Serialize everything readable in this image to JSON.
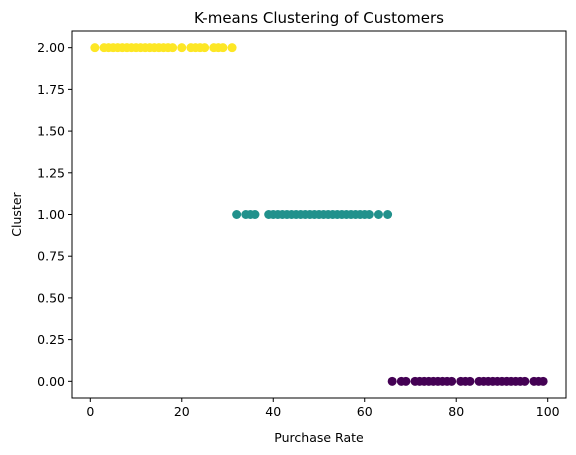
{
  "chart_data": {
    "type": "scatter",
    "title": "K-means Clustering of Customers",
    "xlabel": "Purchase Rate",
    "ylabel": "Cluster",
    "xlim": [
      -4,
      104
    ],
    "ylim": [
      -0.1,
      2.1
    ],
    "xticks": [
      0,
      20,
      40,
      60,
      80,
      100
    ],
    "xtick_labels": [
      "0",
      "20",
      "40",
      "60",
      "80",
      "100"
    ],
    "yticks": [
      0,
      0.25,
      0.5,
      0.75,
      1.0,
      1.25,
      1.5,
      1.75,
      2.0
    ],
    "ytick_labels": [
      "0.00",
      "0.25",
      "0.50",
      "0.75",
      "1.00",
      "1.25",
      "1.50",
      "1.75",
      "2.00"
    ],
    "grid": false,
    "series": [
      {
        "cluster": 2,
        "color": "#fde725",
        "x": [
          1,
          3,
          4,
          5,
          6,
          7,
          8,
          9,
          10,
          11,
          12,
          13,
          14,
          15,
          16,
          17,
          18,
          20,
          22,
          23,
          24,
          25,
          27,
          28,
          29,
          31
        ],
        "y": [
          2,
          2,
          2,
          2,
          2,
          2,
          2,
          2,
          2,
          2,
          2,
          2,
          2,
          2,
          2,
          2,
          2,
          2,
          2,
          2,
          2,
          2,
          2,
          2,
          2,
          2
        ]
      },
      {
        "cluster": 1,
        "color": "#21918c",
        "x": [
          32,
          34,
          35,
          36,
          39,
          40,
          41,
          42,
          43,
          44,
          45,
          46,
          47,
          48,
          49,
          50,
          51,
          52,
          53,
          54,
          55,
          56,
          57,
          58,
          59,
          60,
          61,
          63,
          65
        ],
        "y": [
          1,
          1,
          1,
          1,
          1,
          1,
          1,
          1,
          1,
          1,
          1,
          1,
          1,
          1,
          1,
          1,
          1,
          1,
          1,
          1,
          1,
          1,
          1,
          1,
          1,
          1,
          1,
          1,
          1
        ]
      },
      {
        "cluster": 0,
        "color": "#440154",
        "x": [
          66,
          68,
          69,
          71,
          72,
          73,
          74,
          75,
          76,
          77,
          78,
          79,
          81,
          82,
          83,
          85,
          86,
          87,
          88,
          89,
          90,
          91,
          92,
          93,
          94,
          95,
          97,
          98,
          99
        ],
        "y": [
          0,
          0,
          0,
          0,
          0,
          0,
          0,
          0,
          0,
          0,
          0,
          0,
          0,
          0,
          0,
          0,
          0,
          0,
          0,
          0,
          0,
          0,
          0,
          0,
          0,
          0,
          0,
          0,
          0
        ]
      }
    ]
  }
}
